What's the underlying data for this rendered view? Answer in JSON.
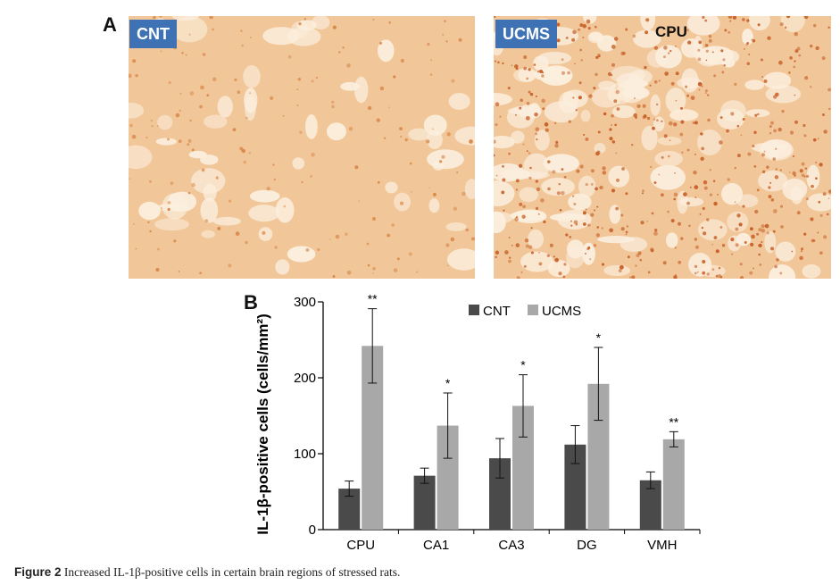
{
  "panel_a": {
    "letter": "A",
    "left_image": {
      "tag": "CNT"
    },
    "right_image": {
      "tag": "UCMS",
      "region": "CPU"
    }
  },
  "panel_b": {
    "letter": "B"
  },
  "caption": {
    "lead": "Figure 2",
    "text": "Increased IL-1β-positive cells in certain brain regions of stressed rats."
  },
  "colors": {
    "cnt": "#4a4a4a",
    "ucms": "#a8a8a8",
    "tag_bg": "#3e72b4",
    "tissue": "#f1c79a",
    "stain": "#d9894a"
  },
  "chart_data": {
    "type": "bar",
    "ylabel": "IL-1β-positive cells (cells/mm²)",
    "ylim": [
      0,
      300
    ],
    "yticks": [
      0,
      100,
      200,
      300
    ],
    "categories": [
      "CPU",
      "CA1",
      "CA3",
      "DG",
      "VMH"
    ],
    "legend": "top",
    "series": [
      {
        "name": "CNT",
        "color": "#4a4a4a",
        "values": [
          54,
          71,
          94,
          112,
          65
        ],
        "errors": [
          10,
          10,
          26,
          25,
          11
        ]
      },
      {
        "name": "UCMS",
        "color": "#a8a8a8",
        "values": [
          242,
          137,
          163,
          192,
          119
        ],
        "errors": [
          49,
          43,
          41,
          48,
          10
        ],
        "significance": [
          "**",
          "*",
          "*",
          "*",
          "**"
        ]
      }
    ]
  }
}
